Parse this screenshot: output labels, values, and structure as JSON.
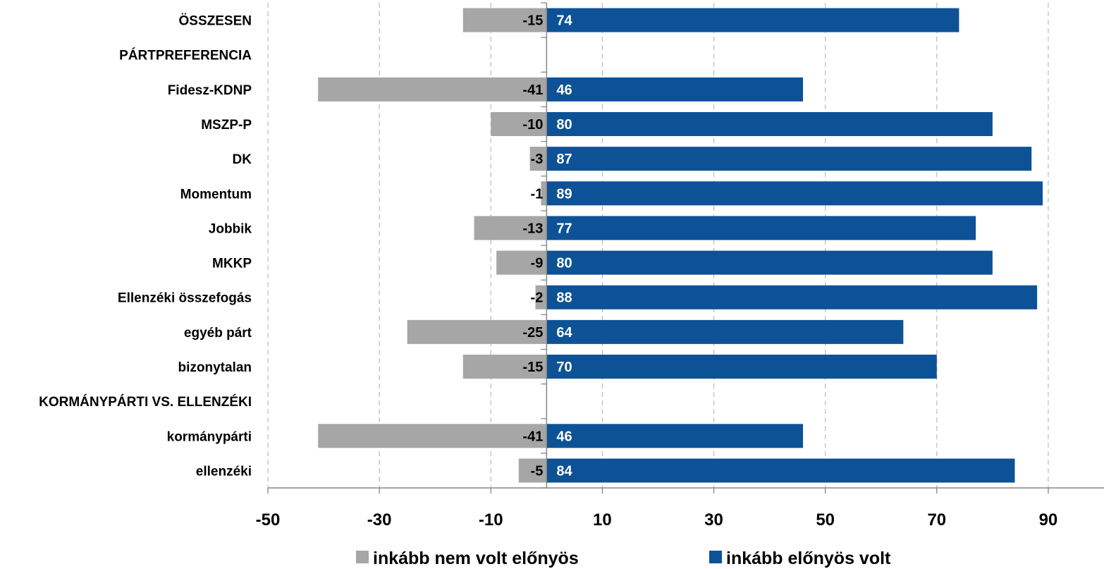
{
  "chart_data": {
    "type": "bar",
    "orientation": "horizontal",
    "stacked": "diverging",
    "categories": [
      "ÖSSZESEN",
      "PÁRTPREFERENCIA",
      "Fidesz-KDNP",
      "MSZP-P",
      "DK",
      "Momentum",
      "Jobbik",
      "MKKP",
      "Ellenzéki összefogás",
      "egyéb párt",
      "bizonytalan",
      "KORMÁNYPÁRTI VS. ELLENZÉKI",
      "kormánypárti",
      "ellenzéki"
    ],
    "series": [
      {
        "name": "inkább nem volt előnyös",
        "color": "#a6a6a6",
        "label_color": "#000000",
        "values": [
          -15,
          null,
          -41,
          -10,
          -3,
          -1,
          -13,
          -9,
          -2,
          -25,
          -15,
          null,
          -41,
          -5
        ]
      },
      {
        "name": "inkább előnyös volt",
        "color": "#0d5296",
        "label_color": "#ffffff",
        "values": [
          74,
          null,
          46,
          80,
          87,
          89,
          77,
          80,
          88,
          64,
          70,
          null,
          46,
          84
        ]
      }
    ],
    "xlim": [
      -50,
      100
    ],
    "xticks": [
      "-50",
      "-30",
      "-10",
      "10",
      "30",
      "50",
      "70",
      "90"
    ],
    "xtick_values": [
      -50,
      -30,
      -10,
      10,
      30,
      50,
      70,
      90
    ],
    "grid": "vertical dashed",
    "legend_position": "bottom"
  }
}
